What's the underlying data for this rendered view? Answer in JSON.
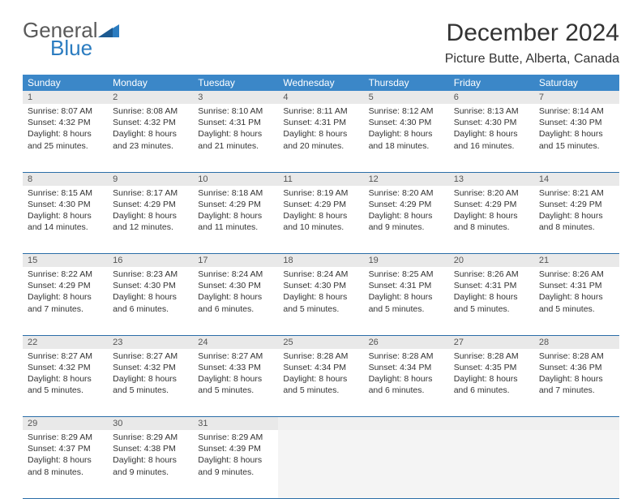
{
  "logo": {
    "word1": "General",
    "word2": "Blue"
  },
  "title": "December 2024",
  "location": "Picture Butte, Alberta, Canada",
  "colors": {
    "header_bg": "#3b87c8",
    "header_text": "#ffffff",
    "daynum_bg": "#e9e9e9",
    "row_border": "#2b6ea8",
    "logo_blue": "#2b7cc0",
    "text": "#333333"
  },
  "dayHeaders": [
    "Sunday",
    "Monday",
    "Tuesday",
    "Wednesday",
    "Thursday",
    "Friday",
    "Saturday"
  ],
  "weeks": [
    [
      {
        "n": "1",
        "sr": "Sunrise: 8:07 AM",
        "ss": "Sunset: 4:32 PM",
        "d1": "Daylight: 8 hours",
        "d2": "and 25 minutes."
      },
      {
        "n": "2",
        "sr": "Sunrise: 8:08 AM",
        "ss": "Sunset: 4:32 PM",
        "d1": "Daylight: 8 hours",
        "d2": "and 23 minutes."
      },
      {
        "n": "3",
        "sr": "Sunrise: 8:10 AM",
        "ss": "Sunset: 4:31 PM",
        "d1": "Daylight: 8 hours",
        "d2": "and 21 minutes."
      },
      {
        "n": "4",
        "sr": "Sunrise: 8:11 AM",
        "ss": "Sunset: 4:31 PM",
        "d1": "Daylight: 8 hours",
        "d2": "and 20 minutes."
      },
      {
        "n": "5",
        "sr": "Sunrise: 8:12 AM",
        "ss": "Sunset: 4:30 PM",
        "d1": "Daylight: 8 hours",
        "d2": "and 18 minutes."
      },
      {
        "n": "6",
        "sr": "Sunrise: 8:13 AM",
        "ss": "Sunset: 4:30 PM",
        "d1": "Daylight: 8 hours",
        "d2": "and 16 minutes."
      },
      {
        "n": "7",
        "sr": "Sunrise: 8:14 AM",
        "ss": "Sunset: 4:30 PM",
        "d1": "Daylight: 8 hours",
        "d2": "and 15 minutes."
      }
    ],
    [
      {
        "n": "8",
        "sr": "Sunrise: 8:15 AM",
        "ss": "Sunset: 4:30 PM",
        "d1": "Daylight: 8 hours",
        "d2": "and 14 minutes."
      },
      {
        "n": "9",
        "sr": "Sunrise: 8:17 AM",
        "ss": "Sunset: 4:29 PM",
        "d1": "Daylight: 8 hours",
        "d2": "and 12 minutes."
      },
      {
        "n": "10",
        "sr": "Sunrise: 8:18 AM",
        "ss": "Sunset: 4:29 PM",
        "d1": "Daylight: 8 hours",
        "d2": "and 11 minutes."
      },
      {
        "n": "11",
        "sr": "Sunrise: 8:19 AM",
        "ss": "Sunset: 4:29 PM",
        "d1": "Daylight: 8 hours",
        "d2": "and 10 minutes."
      },
      {
        "n": "12",
        "sr": "Sunrise: 8:20 AM",
        "ss": "Sunset: 4:29 PM",
        "d1": "Daylight: 8 hours",
        "d2": "and 9 minutes."
      },
      {
        "n": "13",
        "sr": "Sunrise: 8:20 AM",
        "ss": "Sunset: 4:29 PM",
        "d1": "Daylight: 8 hours",
        "d2": "and 8 minutes."
      },
      {
        "n": "14",
        "sr": "Sunrise: 8:21 AM",
        "ss": "Sunset: 4:29 PM",
        "d1": "Daylight: 8 hours",
        "d2": "and 8 minutes."
      }
    ],
    [
      {
        "n": "15",
        "sr": "Sunrise: 8:22 AM",
        "ss": "Sunset: 4:29 PM",
        "d1": "Daylight: 8 hours",
        "d2": "and 7 minutes."
      },
      {
        "n": "16",
        "sr": "Sunrise: 8:23 AM",
        "ss": "Sunset: 4:30 PM",
        "d1": "Daylight: 8 hours",
        "d2": "and 6 minutes."
      },
      {
        "n": "17",
        "sr": "Sunrise: 8:24 AM",
        "ss": "Sunset: 4:30 PM",
        "d1": "Daylight: 8 hours",
        "d2": "and 6 minutes."
      },
      {
        "n": "18",
        "sr": "Sunrise: 8:24 AM",
        "ss": "Sunset: 4:30 PM",
        "d1": "Daylight: 8 hours",
        "d2": "and 5 minutes."
      },
      {
        "n": "19",
        "sr": "Sunrise: 8:25 AM",
        "ss": "Sunset: 4:31 PM",
        "d1": "Daylight: 8 hours",
        "d2": "and 5 minutes."
      },
      {
        "n": "20",
        "sr": "Sunrise: 8:26 AM",
        "ss": "Sunset: 4:31 PM",
        "d1": "Daylight: 8 hours",
        "d2": "and 5 minutes."
      },
      {
        "n": "21",
        "sr": "Sunrise: 8:26 AM",
        "ss": "Sunset: 4:31 PM",
        "d1": "Daylight: 8 hours",
        "d2": "and 5 minutes."
      }
    ],
    [
      {
        "n": "22",
        "sr": "Sunrise: 8:27 AM",
        "ss": "Sunset: 4:32 PM",
        "d1": "Daylight: 8 hours",
        "d2": "and 5 minutes."
      },
      {
        "n": "23",
        "sr": "Sunrise: 8:27 AM",
        "ss": "Sunset: 4:32 PM",
        "d1": "Daylight: 8 hours",
        "d2": "and 5 minutes."
      },
      {
        "n": "24",
        "sr": "Sunrise: 8:27 AM",
        "ss": "Sunset: 4:33 PM",
        "d1": "Daylight: 8 hours",
        "d2": "and 5 minutes."
      },
      {
        "n": "25",
        "sr": "Sunrise: 8:28 AM",
        "ss": "Sunset: 4:34 PM",
        "d1": "Daylight: 8 hours",
        "d2": "and 5 minutes."
      },
      {
        "n": "26",
        "sr": "Sunrise: 8:28 AM",
        "ss": "Sunset: 4:34 PM",
        "d1": "Daylight: 8 hours",
        "d2": "and 6 minutes."
      },
      {
        "n": "27",
        "sr": "Sunrise: 8:28 AM",
        "ss": "Sunset: 4:35 PM",
        "d1": "Daylight: 8 hours",
        "d2": "and 6 minutes."
      },
      {
        "n": "28",
        "sr": "Sunrise: 8:28 AM",
        "ss": "Sunset: 4:36 PM",
        "d1": "Daylight: 8 hours",
        "d2": "and 7 minutes."
      }
    ],
    [
      {
        "n": "29",
        "sr": "Sunrise: 8:29 AM",
        "ss": "Sunset: 4:37 PM",
        "d1": "Daylight: 8 hours",
        "d2": "and 8 minutes."
      },
      {
        "n": "30",
        "sr": "Sunrise: 8:29 AM",
        "ss": "Sunset: 4:38 PM",
        "d1": "Daylight: 8 hours",
        "d2": "and 9 minutes."
      },
      {
        "n": "31",
        "sr": "Sunrise: 8:29 AM",
        "ss": "Sunset: 4:39 PM",
        "d1": "Daylight: 8 hours",
        "d2": "and 9 minutes."
      },
      null,
      null,
      null,
      null
    ]
  ]
}
